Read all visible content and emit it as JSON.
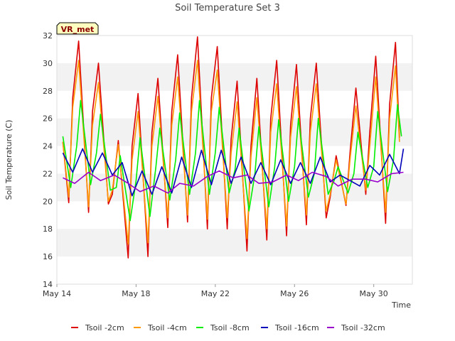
{
  "chart_data": {
    "type": "line",
    "title": "Soil Temperature Set 3",
    "xlabel": "Time",
    "ylabel": "Soil Temperature (C)",
    "badge": "VR_met",
    "xlim": [
      14.0,
      31.95
    ],
    "ylim": [
      14,
      32
    ],
    "x_ticks": [
      {
        "value": 14,
        "label": "May 14"
      },
      {
        "value": 18,
        "label": "May 18"
      },
      {
        "value": 22,
        "label": "May 22"
      },
      {
        "value": 26,
        "label": "May 26"
      },
      {
        "value": 30,
        "label": "May 30"
      }
    ],
    "y_ticks": [
      14,
      16,
      18,
      20,
      22,
      24,
      26,
      28,
      30,
      32
    ],
    "grid": "horizontal bands",
    "legend_position": "bottom",
    "x_unit": "day of May",
    "series": [
      {
        "name": "Tsoil -2cm",
        "color": "#dd0000",
        "x": [
          14.3,
          14.6,
          14.8,
          15.1,
          15.6,
          15.8,
          16.1,
          16.6,
          16.8,
          17.1,
          17.6,
          17.8,
          18.1,
          18.6,
          18.8,
          19.1,
          19.6,
          19.8,
          20.1,
          20.6,
          20.8,
          21.1,
          21.6,
          21.8,
          22.1,
          22.6,
          22.8,
          23.1,
          23.6,
          23.8,
          24.1,
          24.6,
          24.8,
          25.1,
          25.6,
          25.8,
          26.1,
          26.6,
          26.8,
          27.1,
          27.6,
          27.8,
          28.1,
          28.6,
          28.8,
          29.1,
          29.6,
          29.8,
          30.1,
          30.6,
          30.8,
          31.1,
          31.3
        ],
        "values": [
          24.3,
          19.9,
          27.5,
          31.6,
          19.2,
          26.5,
          30.0,
          19.8,
          20.5,
          24.4,
          15.9,
          24.0,
          27.8,
          16.0,
          25.0,
          28.9,
          18.1,
          26.5,
          30.6,
          18.5,
          27.5,
          31.9,
          18.0,
          27.5,
          31.2,
          18.0,
          24.5,
          28.7,
          16.4,
          24.0,
          28.9,
          17.2,
          26.0,
          30.2,
          17.5,
          25.5,
          29.9,
          18.3,
          26.0,
          30.0,
          18.8,
          20.3,
          23.3,
          19.7,
          23.5,
          28.2,
          20.5,
          25.0,
          30.5,
          18.4,
          27.0,
          31.5,
          24.6
        ]
      },
      {
        "name": "Tsoil -4cm",
        "color": "#ff9900",
        "x": [
          14.3,
          14.6,
          14.8,
          15.1,
          15.6,
          15.8,
          16.1,
          16.6,
          16.8,
          17.1,
          17.6,
          17.8,
          18.1,
          18.6,
          18.8,
          19.1,
          19.6,
          19.8,
          20.1,
          20.6,
          20.8,
          21.1,
          21.6,
          21.8,
          22.1,
          22.6,
          22.8,
          23.1,
          23.6,
          23.8,
          24.1,
          24.6,
          24.8,
          25.1,
          25.6,
          25.8,
          26.1,
          26.6,
          26.8,
          27.1,
          27.6,
          27.8,
          28.1,
          28.6,
          28.8,
          29.1,
          29.6,
          29.8,
          30.1,
          30.6,
          30.8,
          31.1,
          31.3
        ],
        "values": [
          24.3,
          20.3,
          26.8,
          30.2,
          19.6,
          25.5,
          28.6,
          20.0,
          20.8,
          24.1,
          16.9,
          23.0,
          26.5,
          17.0,
          24.0,
          27.6,
          18.8,
          25.5,
          29.0,
          19.0,
          26.5,
          30.2,
          18.7,
          26.5,
          29.5,
          18.8,
          23.5,
          27.2,
          17.3,
          23.2,
          27.5,
          18.0,
          25.0,
          28.5,
          18.2,
          24.6,
          28.3,
          19.0,
          25.0,
          28.5,
          19.3,
          20.5,
          23.0,
          19.8,
          23.0,
          26.9,
          20.8,
          24.0,
          29.0,
          19.2,
          26.0,
          29.8,
          24.3
        ]
      },
      {
        "name": "Tsoil -8cm",
        "color": "#00ee00",
        "x": [
          14.3,
          14.7,
          15.0,
          15.2,
          15.7,
          16.0,
          16.2,
          16.7,
          17.0,
          17.2,
          17.7,
          18.0,
          18.2,
          18.7,
          19.0,
          19.2,
          19.7,
          20.0,
          20.2,
          20.7,
          21.0,
          21.2,
          21.7,
          22.0,
          22.2,
          22.7,
          23.0,
          23.2,
          23.7,
          24.0,
          24.2,
          24.7,
          25.0,
          25.2,
          25.7,
          26.0,
          26.2,
          26.7,
          27.0,
          27.2,
          27.7,
          28.0,
          28.2,
          28.7,
          29.0,
          29.2,
          29.7,
          30.0,
          30.2,
          30.7,
          31.0,
          31.2,
          31.4
        ],
        "values": [
          24.7,
          21.0,
          24.0,
          27.3,
          21.2,
          23.5,
          26.3,
          20.8,
          21.0,
          23.3,
          18.6,
          21.5,
          24.6,
          18.9,
          22.5,
          25.3,
          20.1,
          23.0,
          26.4,
          20.5,
          23.5,
          27.3,
          20.5,
          23.5,
          26.8,
          20.6,
          22.3,
          25.3,
          19.3,
          22.0,
          25.4,
          19.6,
          22.5,
          25.9,
          20.0,
          22.5,
          26.0,
          20.3,
          22.0,
          26.0,
          20.5,
          21.5,
          22.5,
          20.6,
          22.0,
          25.0,
          21.0,
          22.5,
          26.5,
          20.7,
          23.0,
          27.0,
          24.7
        ]
      },
      {
        "name": "Tsoil -16cm",
        "color": "#0000bb",
        "x": [
          14.3,
          14.8,
          15.3,
          15.8,
          16.3,
          16.8,
          17.3,
          17.8,
          18.3,
          18.8,
          19.3,
          19.8,
          20.3,
          20.8,
          21.3,
          21.8,
          22.3,
          22.8,
          23.3,
          23.8,
          24.3,
          24.8,
          25.3,
          25.8,
          26.3,
          26.8,
          27.3,
          27.8,
          28.3,
          28.8,
          29.3,
          29.8,
          30.3,
          30.8,
          31.3,
          31.5
        ],
        "values": [
          23.5,
          22.1,
          23.8,
          22.1,
          23.5,
          21.9,
          22.8,
          20.4,
          22.2,
          20.5,
          22.5,
          20.6,
          23.2,
          21.0,
          23.7,
          21.2,
          23.7,
          21.3,
          23.2,
          21.3,
          22.8,
          21.2,
          23.0,
          21.3,
          22.8,
          21.3,
          23.2,
          21.4,
          21.9,
          21.5,
          21.1,
          22.6,
          21.9,
          23.4,
          22.0,
          23.8
        ]
      },
      {
        "name": "Tsoil -32cm",
        "color": "#9900cc",
        "x": [
          14.3,
          14.9,
          15.6,
          16.2,
          16.9,
          17.6,
          18.2,
          18.9,
          19.6,
          20.2,
          20.9,
          21.6,
          22.2,
          22.9,
          23.6,
          24.2,
          24.9,
          25.6,
          26.2,
          26.9,
          27.6,
          28.2,
          28.9,
          29.6,
          30.2,
          30.9,
          31.5
        ],
        "values": [
          21.7,
          21.3,
          22.1,
          21.5,
          21.9,
          21.3,
          20.7,
          21.1,
          20.6,
          21.3,
          21.1,
          21.8,
          22.2,
          21.7,
          21.9,
          21.3,
          21.4,
          21.9,
          21.5,
          22.1,
          21.8,
          21.1,
          21.6,
          21.6,
          21.4,
          22.0,
          22.1
        ]
      }
    ]
  }
}
